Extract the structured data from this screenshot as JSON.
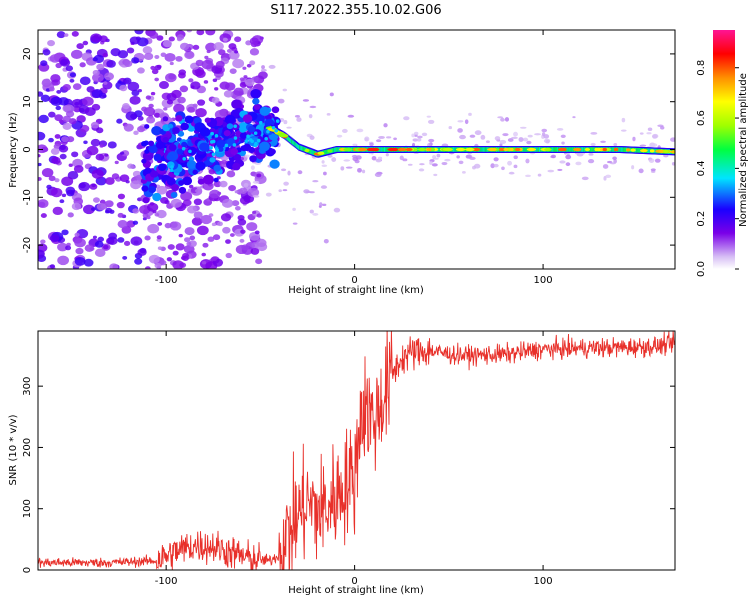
{
  "title": "S117.2022.355.10.02.G06",
  "chart_data": [
    {
      "type": "heatmap",
      "xlabel": "Height of straight line (km)",
      "ylabel": "Frequency (Hz)",
      "xlim": [
        -168,
        170
      ],
      "ylim": [
        -25,
        25
      ],
      "xticks": [
        -100,
        0,
        100
      ],
      "yticks": [
        -20,
        -10,
        0,
        10,
        20
      ],
      "colorbar": {
        "label": "Normalized spectral amplitude",
        "range": [
          0,
          0.95
        ],
        "ticks": [
          "0.0",
          "0.2",
          "0.4",
          "0.6",
          "0.8"
        ]
      },
      "ridge": {
        "description_free_points_x": [
          -168,
          -110,
          -80,
          -60,
          -45,
          -38,
          -30,
          -20,
          -10,
          0,
          20,
          60,
          100,
          140,
          170
        ],
        "frequency": [
          -6,
          -3,
          1,
          3,
          4.5,
          3,
          0.5,
          -1,
          0,
          0,
          0,
          0,
          0,
          0,
          -0.5
        ]
      }
    },
    {
      "type": "line",
      "xlabel": "Height of straight line (km)",
      "ylabel": "SNR (10 * v/v)",
      "xlim": [
        -168,
        170
      ],
      "ylim": [
        0,
        390
      ],
      "xticks": [
        -100,
        0,
        100
      ],
      "yticks": [
        0,
        100,
        200,
        300
      ],
      "color": "#e8302a",
      "series": [
        {
          "x": [
            -168,
            -130,
            -105,
            -95,
            -85,
            -75,
            -65,
            -55,
            -45,
            -40,
            -35,
            -30,
            -25,
            -20,
            -15,
            -10,
            -5,
            0,
            3,
            6,
            10,
            15,
            20,
            25,
            30,
            40,
            50,
            60,
            80,
            100,
            120,
            140,
            160,
            170
          ],
          "values": [
            12,
            12,
            15,
            30,
            40,
            38,
            28,
            18,
            15,
            25,
            60,
            90,
            110,
            95,
            100,
            120,
            140,
            150,
            250,
            270,
            240,
            280,
            320,
            345,
            355,
            358,
            352,
            350,
            352,
            360,
            362,
            363,
            365,
            370
          ]
        }
      ]
    }
  ]
}
